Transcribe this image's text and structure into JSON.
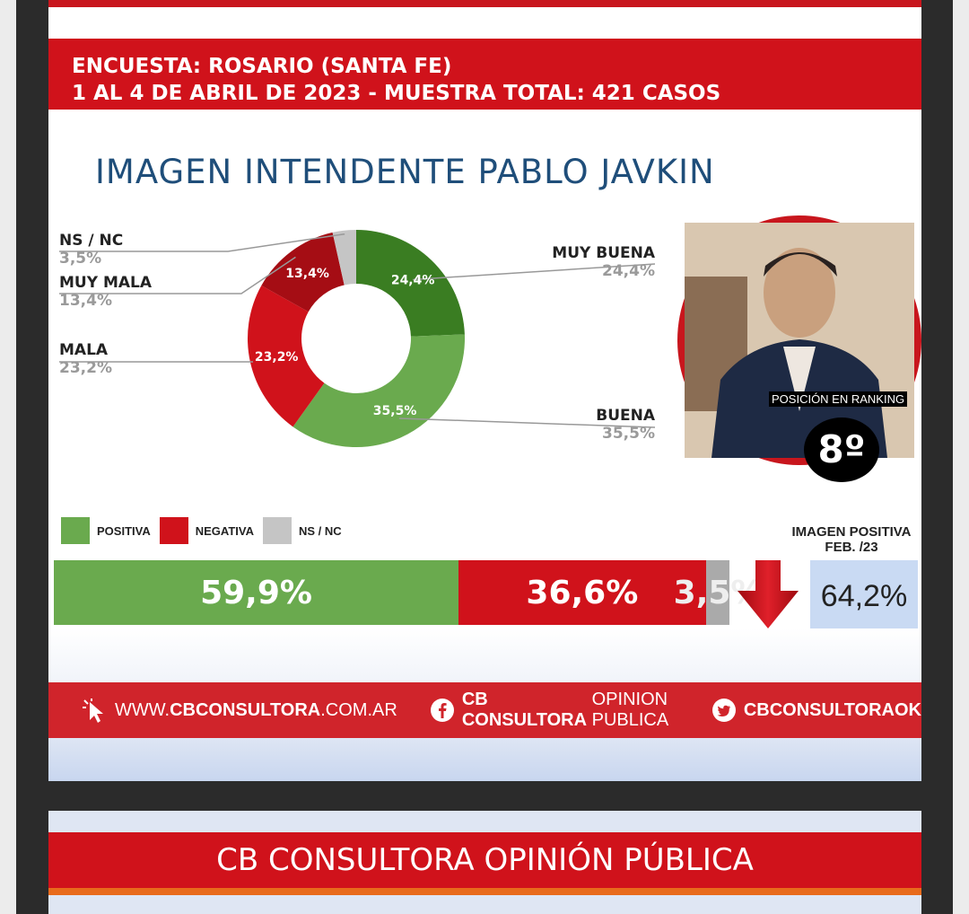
{
  "header": {
    "line1": "ENCUESTA: ROSARIO (SANTA FE)",
    "line2": "1 AL 4 DE ABRIL DE 2023 - MUESTRA TOTAL: 421 CASOS"
  },
  "chart_data": [
    {
      "type": "pie",
      "title": "IMAGEN INTENDENTE PABLO JAVKIN",
      "categories": [
        "MUY BUENA",
        "BUENA",
        "MALA",
        "MUY MALA",
        "NS / NC"
      ],
      "values": [
        24.4,
        35.5,
        23.2,
        13.4,
        3.5
      ],
      "value_labels": [
        "24,4%",
        "35,5%",
        "23,2%",
        "13,4%",
        "3,5%"
      ],
      "colors": [
        "#3a7d22",
        "#6aaa4e",
        "#d0121b",
        "#a50d14",
        "#c5c5c5"
      ]
    },
    {
      "type": "bar",
      "orientation": "horizontal-stacked",
      "categories": [
        "POSITIVA",
        "NEGATIVA",
        "NS / NC"
      ],
      "values": [
        59.9,
        36.6,
        3.5
      ],
      "value_labels": [
        "59,9%",
        "36,6%",
        "3,5%"
      ],
      "colors": [
        "#6aaa4e",
        "#d0121b",
        "#aaaaaa"
      ]
    }
  ],
  "ranking": {
    "label": "POSICIÓN EN RANKING",
    "value": "8º"
  },
  "previous": {
    "title_line1": "IMAGEN POSITIVA",
    "title_line2": "FEB. /23",
    "value": "64,2%",
    "trend_icon": "arrow-down-icon"
  },
  "footer": {
    "web_prefix": "WWW.",
    "web_bold": "CBCONSULTORA",
    "web_suffix": ".COM.AR",
    "fb_bold": "CB CONSULTORA",
    "fb_light": "OPINION PUBLICA",
    "tw": "CBCONSULTORAOK"
  },
  "next_slide": {
    "title": "CB CONSULTORA OPINIÓN PÚBLICA"
  }
}
